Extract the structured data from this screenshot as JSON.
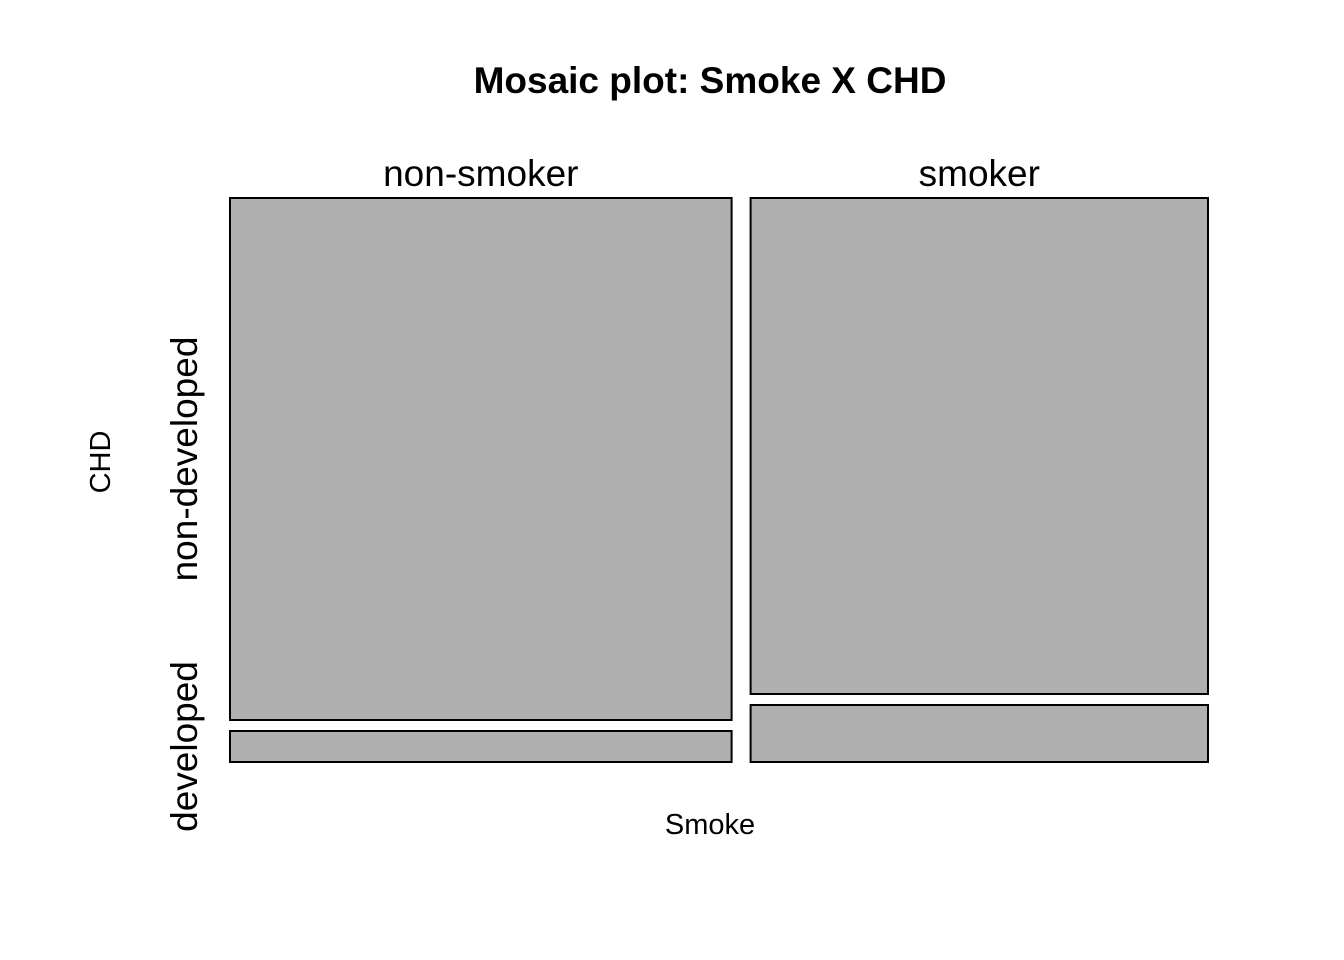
{
  "chart_data": {
    "type": "mosaic",
    "title": "Mosaic plot: Smoke X CHD",
    "xlabel": "Smoke",
    "ylabel": "CHD",
    "columns": [
      "non-smoker",
      "smoker"
    ],
    "rows": [
      "non-developed",
      "developed"
    ],
    "column_proportions": [
      0.523,
      0.477
    ],
    "cells": [
      {
        "column": "non-smoker",
        "row": "non-developed",
        "proportion_within_column": 0.944
      },
      {
        "column": "non-smoker",
        "row": "developed",
        "proportion_within_column": 0.056
      },
      {
        "column": "smoker",
        "row": "non-developed",
        "proportion_within_column": 0.897
      },
      {
        "column": "smoker",
        "row": "developed",
        "proportion_within_column": 0.103
      }
    ],
    "fill_color": "#b0b0b0",
    "stroke_color": "#000000"
  }
}
